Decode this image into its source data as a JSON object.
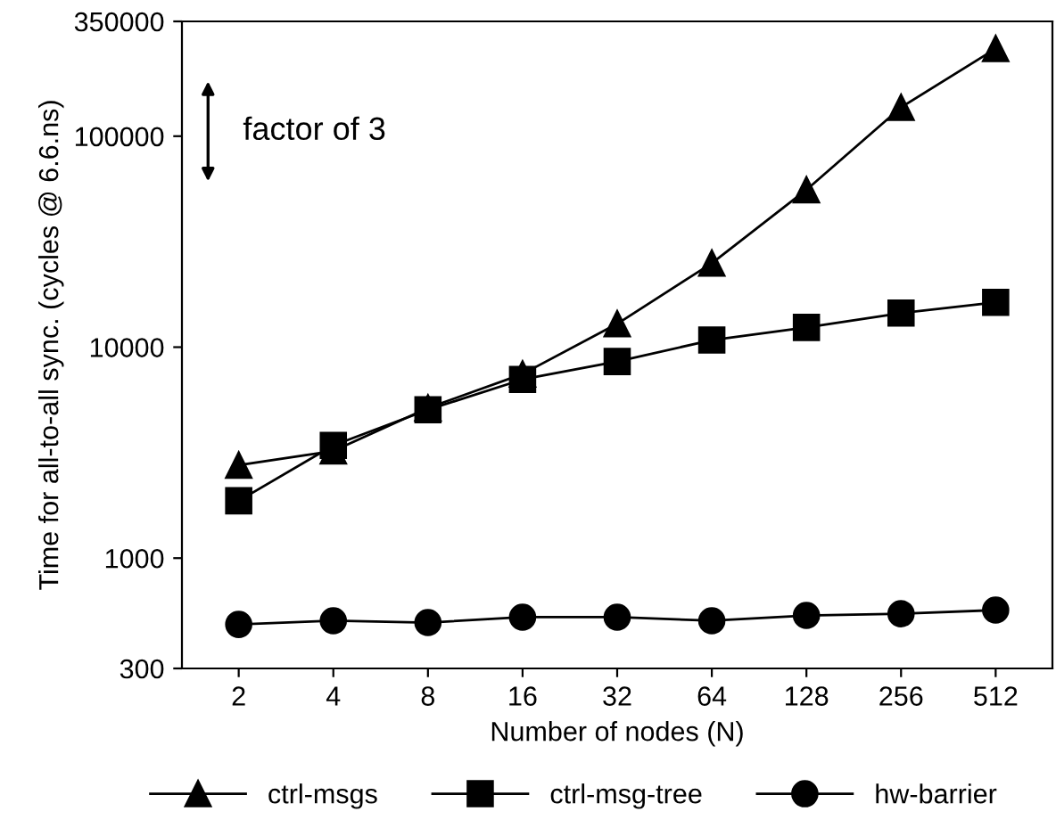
{
  "chart_data": {
    "type": "line",
    "xlabel": "Number of nodes (N)",
    "ylabel": "Time for all-to-all sync. (cycles @ 6.6.ns)",
    "categories": [
      "2",
      "4",
      "8",
      "16",
      "32",
      "64",
      "128",
      "256",
      "512"
    ],
    "series": [
      {
        "name": "ctrl-msgs",
        "color": "#000000",
        "marker": "triangle",
        "values": [
          2760,
          3220,
          5150,
          7460,
          12900,
          25000,
          55700,
          137000,
          260000
        ]
      },
      {
        "name": "ctrl-msg-tree",
        "color": "#000000",
        "marker": "square",
        "values": [
          1870,
          3420,
          5050,
          7030,
          8550,
          10800,
          12400,
          14500,
          16300
        ]
      },
      {
        "name": "hw-barrier",
        "color": "#000000",
        "marker": "circle",
        "values": [
          485,
          505,
          495,
          525,
          525,
          505,
          535,
          545,
          567
        ]
      }
    ],
    "log": "y",
    "ylim": [
      300,
      350000
    ],
    "yticks": [
      300,
      1000,
      10000,
      100000,
      350000
    ],
    "annotations": [
      "factor of 3"
    ],
    "legend": "bottom",
    "grid": false,
    "line_style": "solid"
  }
}
